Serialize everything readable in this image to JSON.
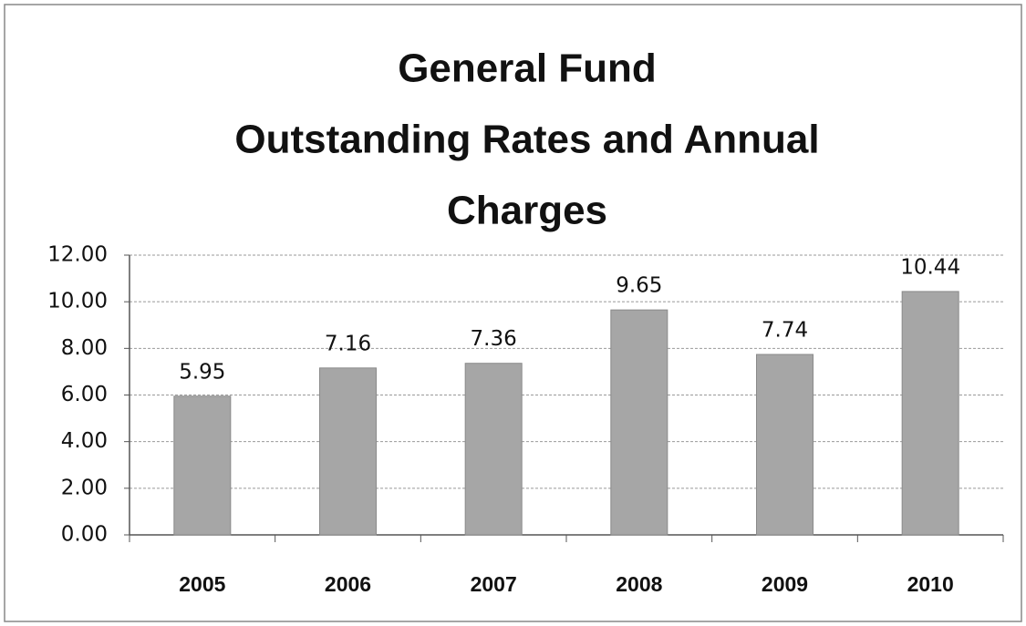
{
  "chart_data": {
    "type": "bar",
    "title": [
      "General Fund",
      "Outstanding Rates and Annual",
      "Charges"
    ],
    "categories": [
      "2005",
      "2006",
      "2007",
      "2008",
      "2009",
      "2010"
    ],
    "values": [
      5.95,
      7.16,
      7.36,
      9.65,
      7.74,
      10.44
    ],
    "color": "#a6a6a6",
    "ylim": [
      0,
      12
    ],
    "yticks": [
      {
        "value": 0,
        "label": "0.00"
      },
      {
        "value": 2,
        "label": "2.00"
      },
      {
        "value": 4,
        "label": "4.00"
      },
      {
        "value": 6,
        "label": "6.00"
      },
      {
        "value": 8,
        "label": "8.00"
      },
      {
        "value": 10,
        "label": "10.00"
      },
      {
        "value": 12,
        "label": "12.00"
      }
    ],
    "grid": true
  }
}
